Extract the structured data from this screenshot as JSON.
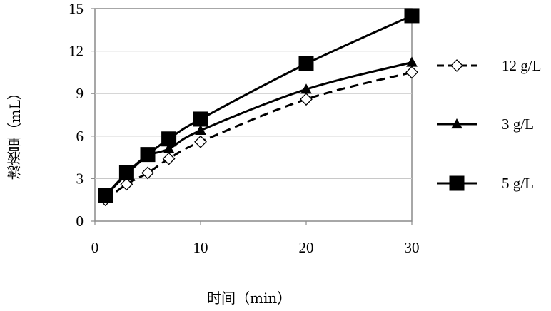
{
  "chart_data": {
    "type": "line",
    "xlabel": "时间（min）",
    "ylabel": "滤液量（mL）",
    "xlim": [
      0,
      30
    ],
    "ylim": [
      0,
      15
    ],
    "x_ticks": [
      "0",
      "10",
      "20",
      "30"
    ],
    "y_ticks": [
      "0",
      "3",
      "6",
      "9",
      "12",
      "15"
    ],
    "grid": "horizontal",
    "legend_position": "right",
    "series": [
      {
        "name": "12 g/L",
        "line_style": "dashed",
        "marker": "diamond-open",
        "color": "#000000",
        "x": [
          1,
          3,
          5,
          7,
          10,
          20,
          30
        ],
        "y": [
          1.5,
          2.6,
          3.4,
          4.4,
          5.6,
          8.6,
          10.5
        ]
      },
      {
        "name": "3 g/L",
        "line_style": "solid",
        "marker": "triangle-filled",
        "color": "#000000",
        "x": [
          1,
          3,
          5,
          7,
          10,
          20,
          30
        ],
        "y": [
          1.8,
          3.3,
          4.6,
          5.1,
          6.4,
          9.3,
          11.2
        ]
      },
      {
        "name": "5 g/L",
        "line_style": "solid",
        "marker": "square-filled",
        "color": "#000000",
        "x": [
          1,
          3,
          5,
          7,
          10,
          20,
          30
        ],
        "y": [
          1.8,
          3.4,
          4.7,
          5.8,
          7.2,
          11.1,
          14.5
        ]
      }
    ]
  }
}
